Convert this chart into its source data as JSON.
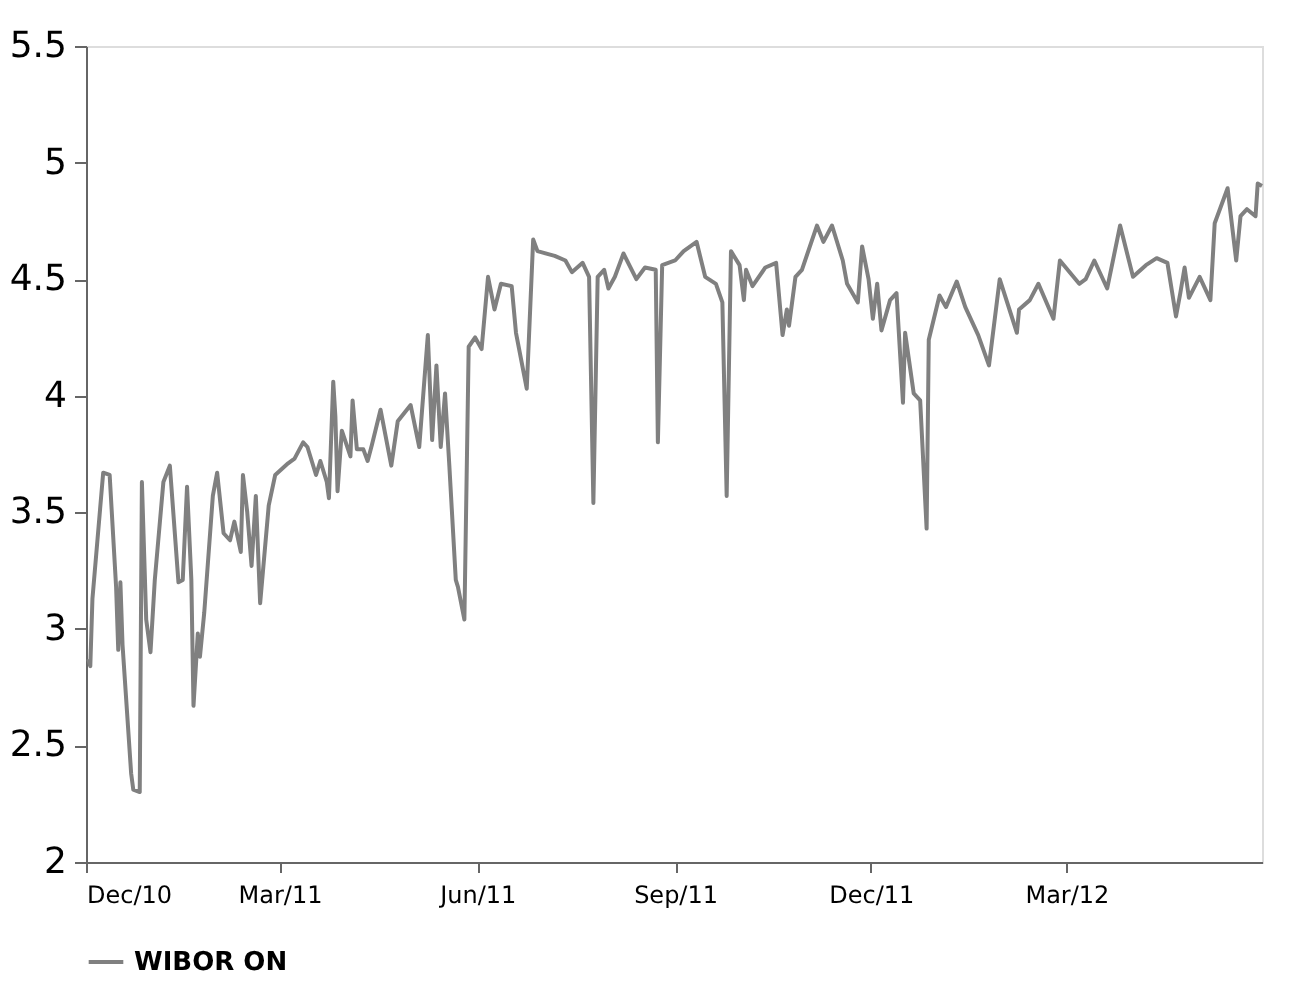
{
  "chart_data": {
    "type": "line",
    "x": [
      "2010-12-02",
      "2010-12-03",
      "2010-12-04",
      "2010-12-09",
      "2010-12-12",
      "2010-12-15",
      "2010-12-16",
      "2010-12-17",
      "2010-12-18",
      "2010-12-22",
      "2010-12-23",
      "2010-12-26",
      "2010-12-27",
      "2010-12-29",
      "2010-12-31",
      "2011-01-02",
      "2011-01-06",
      "2011-01-09",
      "2011-01-13",
      "2011-01-15",
      "2011-01-17",
      "2011-01-19",
      "2011-01-20",
      "2011-01-22",
      "2011-01-23",
      "2011-01-25",
      "2011-01-29",
      "2011-01-31",
      "2011-02-03",
      "2011-02-06",
      "2011-02-08",
      "2011-02-11",
      "2011-02-12",
      "2011-02-14",
      "2011-02-16",
      "2011-02-18",
      "2011-02-20",
      "2011-02-24",
      "2011-02-27",
      "2011-03-05",
      "2011-03-08",
      "2011-03-12",
      "2011-03-14",
      "2011-03-18",
      "2011-03-20",
      "2011-03-23",
      "2011-03-24",
      "2011-03-26",
      "2011-03-27",
      "2011-03-28",
      "2011-03-30",
      "2011-04-03",
      "2011-04-04",
      "2011-04-06",
      "2011-04-09",
      "2011-04-11",
      "2011-04-13",
      "2011-04-17",
      "2011-04-22",
      "2011-04-25",
      "2011-05-01",
      "2011-05-05",
      "2011-05-09",
      "2011-05-11",
      "2011-05-13",
      "2011-05-15",
      "2011-05-17",
      "2011-05-19",
      "2011-05-22",
      "2011-05-23",
      "2011-05-26",
      "2011-05-28",
      "2011-05-31",
      "2011-06-03",
      "2011-06-06",
      "2011-06-09",
      "2011-06-12",
      "2011-06-17",
      "2011-06-19",
      "2011-06-24",
      "2011-06-27",
      "2011-06-29",
      "2011-07-07",
      "2011-07-12",
      "2011-07-15",
      "2011-07-20",
      "2011-07-23",
      "2011-07-25",
      "2011-07-27",
      "2011-07-30",
      "2011-08-01",
      "2011-08-04",
      "2011-08-08",
      "2011-08-14",
      "2011-08-18",
      "2011-08-23",
      "2011-08-24",
      "2011-08-26",
      "2011-09-01",
      "2011-09-05",
      "2011-09-11",
      "2011-09-15",
      "2011-09-20",
      "2011-09-23",
      "2011-09-25",
      "2011-09-27",
      "2011-10-01",
      "2011-10-03",
      "2011-10-04",
      "2011-10-07",
      "2011-10-13",
      "2011-10-18",
      "2011-10-21",
      "2011-10-23",
      "2011-10-24",
      "2011-10-27",
      "2011-10-30",
      "2011-11-06",
      "2011-11-09",
      "2011-11-13",
      "2011-11-18",
      "2011-11-20",
      "2011-11-25",
      "2011-11-27",
      "2011-11-30",
      "2011-12-02",
      "2011-12-04",
      "2011-12-06",
      "2011-12-10",
      "2011-12-13",
      "2011-12-16",
      "2011-12-17",
      "2011-12-21",
      "2011-12-24",
      "2011-12-27",
      "2011-12-28",
      "2012-01-02",
      "2012-01-05",
      "2012-01-10",
      "2012-01-14",
      "2012-01-20",
      "2012-01-25",
      "2012-01-30",
      "2012-02-07",
      "2012-02-08",
      "2012-02-13",
      "2012-02-17",
      "2012-02-24",
      "2012-02-27",
      "2012-03-07",
      "2012-03-10",
      "2012-03-14",
      "2012-03-20",
      "2012-03-26",
      "2012-04-01",
      "2012-04-07",
      "2012-04-12",
      "2012-04-17",
      "2012-04-21",
      "2012-04-23",
      "2012-04-25",
      "2012-04-27",
      "2012-05-02",
      "2012-05-07",
      "2012-05-09",
      "2012-05-15",
      "2012-05-19",
      "2012-05-21",
      "2012-05-24",
      "2012-05-28",
      "2012-05-29",
      "2012-05-31"
    ],
    "series": [
      {
        "name": "WIBOR ON",
        "color": "#808080",
        "values": [
          2.87,
          2.84,
          3.13,
          3.67,
          3.66,
          3.18,
          2.91,
          3.2,
          2.93,
          2.38,
          2.31,
          2.3,
          3.63,
          3.04,
          2.9,
          3.21,
          3.63,
          3.7,
          3.2,
          3.21,
          3.61,
          3.21,
          2.67,
          2.98,
          2.88,
          3.07,
          3.57,
          3.67,
          3.41,
          3.38,
          3.46,
          3.33,
          3.66,
          3.5,
          3.27,
          3.57,
          3.11,
          3.53,
          3.66,
          3.71,
          3.73,
          3.8,
          3.78,
          3.66,
          3.72,
          3.63,
          3.56,
          4.06,
          3.91,
          3.59,
          3.85,
          3.74,
          3.98,
          3.77,
          3.77,
          3.72,
          3.79,
          3.94,
          3.7,
          3.89,
          3.96,
          3.78,
          4.26,
          3.81,
          4.13,
          3.78,
          4.01,
          3.7,
          3.21,
          3.18,
          3.04,
          4.21,
          4.25,
          4.2,
          4.51,
          4.37,
          4.48,
          4.47,
          4.27,
          4.03,
          4.67,
          4.62,
          4.6,
          4.58,
          4.53,
          4.57,
          4.51,
          3.54,
          4.51,
          4.54,
          4.46,
          4.51,
          4.61,
          4.5,
          4.55,
          4.54,
          3.8,
          4.56,
          4.58,
          4.62,
          4.66,
          4.51,
          4.48,
          4.4,
          3.57,
          4.62,
          4.56,
          4.41,
          4.54,
          4.47,
          4.55,
          4.57,
          4.26,
          4.37,
          4.3,
          4.51,
          4.54,
          4.73,
          4.66,
          4.73,
          4.58,
          4.48,
          4.4,
          4.64,
          4.5,
          4.33,
          4.48,
          4.28,
          4.41,
          4.44,
          3.97,
          4.27,
          4.01,
          3.98,
          3.43,
          4.24,
          4.43,
          4.38,
          4.49,
          4.38,
          4.26,
          4.13,
          4.5,
          4.27,
          4.37,
          4.41,
          4.48,
          4.33,
          4.58,
          4.48,
          4.5,
          4.58,
          4.46,
          4.73,
          4.51,
          4.56,
          4.59,
          4.57,
          4.34,
          4.44,
          4.55,
          4.42,
          4.51,
          4.41,
          4.74,
          4.89,
          4.58,
          4.77,
          4.8,
          4.77,
          4.91,
          4.9
        ]
      }
    ],
    "xlim": [
      "2010-12-01",
      "2012-05-31"
    ],
    "xticks": [
      {
        "value": "2010-12-01",
        "label": "Dec/10"
      },
      {
        "value": "2011-03-01",
        "label": "Mar/11"
      },
      {
        "value": "2011-06-01",
        "label": "Jun/11"
      },
      {
        "value": "2011-09-01",
        "label": "Sep/11"
      },
      {
        "value": "2011-12-01",
        "label": "Dec/11"
      },
      {
        "value": "2012-03-01",
        "label": "Mar/12"
      }
    ],
    "ylim": [
      2,
      5.5
    ],
    "yticks": [
      2,
      2.5,
      3,
      3.5,
      4,
      4.5,
      5,
      5.5
    ],
    "grid": false,
    "legend": "bottom",
    "marker": "none",
    "line_style": "solid"
  }
}
